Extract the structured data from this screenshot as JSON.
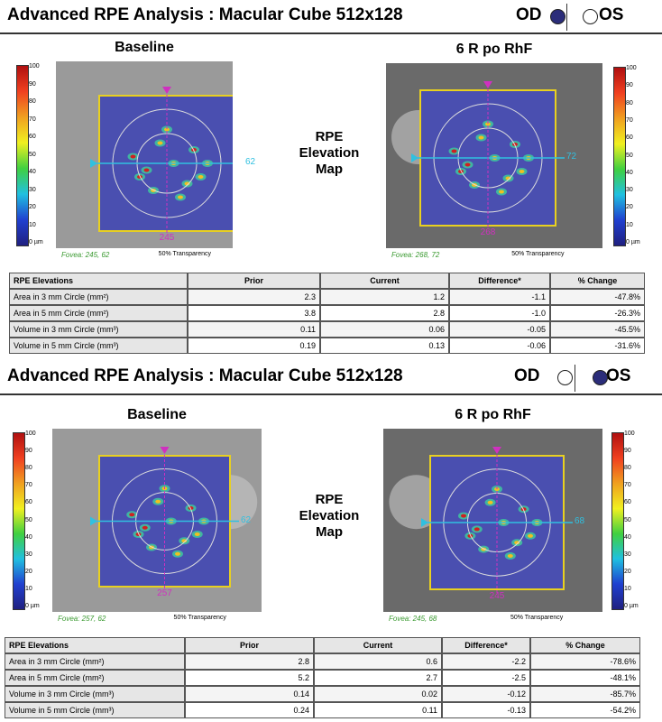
{
  "scale_labels": [
    "100",
    "90",
    "80",
    "70",
    "60",
    "50",
    "40",
    "30",
    "20",
    "10",
    "0 µm"
  ],
  "panels": [
    {
      "header": {
        "title": "Advanced RPE Analysis : Macular Cube 512x128",
        "od": "OD",
        "os": "OS",
        "selected_eye": "OD"
      },
      "map_label": [
        "RPE",
        "Elevation",
        "Map"
      ],
      "baseline": {
        "title": "Baseline",
        "fovea": "Fovea: 245, 62",
        "transparency": "50% Transparency",
        "x_marker": "245",
        "y_marker": "62"
      },
      "followup": {
        "title": "6 R po RhF",
        "fovea": "Fovea: 268, 72",
        "transparency": "50% Transparency",
        "x_marker": "268",
        "y_marker": "72"
      },
      "table": {
        "columns": [
          "RPE Elevations",
          "Prior",
          "Current",
          "Difference*",
          "% Change"
        ],
        "rows": [
          [
            "Area in 3 mm Circle (mm²)",
            "2.3",
            "1.2",
            "-1.1",
            "-47.8%"
          ],
          [
            "Area in 5 mm Circle (mm²)",
            "3.8",
            "2.8",
            "-1.0",
            "-26.3%"
          ],
          [
            "Volume in 3 mm Circle (mm³)",
            "0.11",
            "0.06",
            "-0.05",
            "-45.5%"
          ],
          [
            "Volume in 5 mm Circle (mm³)",
            "0.19",
            "0.13",
            "-0.06",
            "-31.6%"
          ]
        ]
      }
    },
    {
      "header": {
        "title": "Advanced RPE Analysis : Macular Cube 512x128",
        "od": "OD",
        "os": "OS",
        "selected_eye": "OS"
      },
      "map_label": [
        "RPE",
        "Elevation",
        "Map"
      ],
      "baseline": {
        "title": "Baseline",
        "fovea": "Fovea: 257, 62",
        "transparency": "50% Transparency",
        "x_marker": "257",
        "y_marker": "62"
      },
      "followup": {
        "title": "6 R po RhF",
        "fovea": "Fovea: 245, 68",
        "transparency": "50% Transparency",
        "x_marker": "245",
        "y_marker": "68"
      },
      "table": {
        "columns": [
          "RPE Elevations",
          "Prior",
          "Current",
          "Difference*",
          "% Change"
        ],
        "rows": [
          [
            "Area in 3 mm Circle (mm²)",
            "2.8",
            "0.6",
            "-2.2",
            "-78.6%"
          ],
          [
            "Area in 5 mm Circle (mm²)",
            "5.2",
            "2.7",
            "-2.5",
            "-48.1%"
          ],
          [
            "Volume in 3 mm Circle (mm³)",
            "0.14",
            "0.02",
            "-0.12",
            "-85.7%"
          ],
          [
            "Volume in 5 mm Circle (mm³)",
            "0.24",
            "0.11",
            "-0.13",
            "-54.2%"
          ]
        ]
      }
    }
  ]
}
